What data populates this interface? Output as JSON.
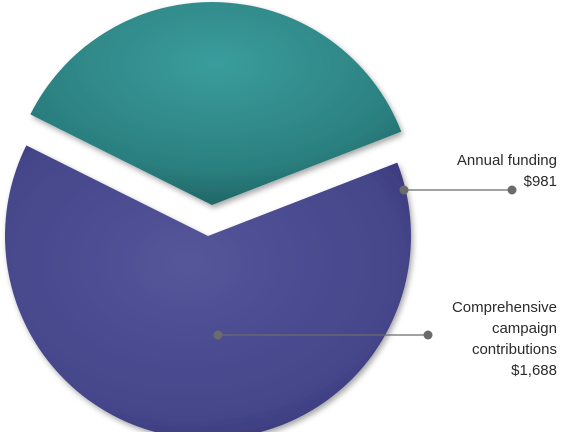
{
  "chart_data": {
    "type": "pie",
    "title": "",
    "exploded": true,
    "slices": [
      {
        "label_lines": [
          "Annual funding"
        ],
        "value_text": "$981",
        "value": 981,
        "color": "#2f8a8a",
        "icon": "leader-dot"
      },
      {
        "label_lines": [
          "Comprehensive",
          "campaign",
          "contributions"
        ],
        "value_text": "$1,688",
        "value": 1688,
        "color": "#4a4a8e",
        "icon": "leader-dot"
      }
    ],
    "legend": "callout-labels-right"
  }
}
